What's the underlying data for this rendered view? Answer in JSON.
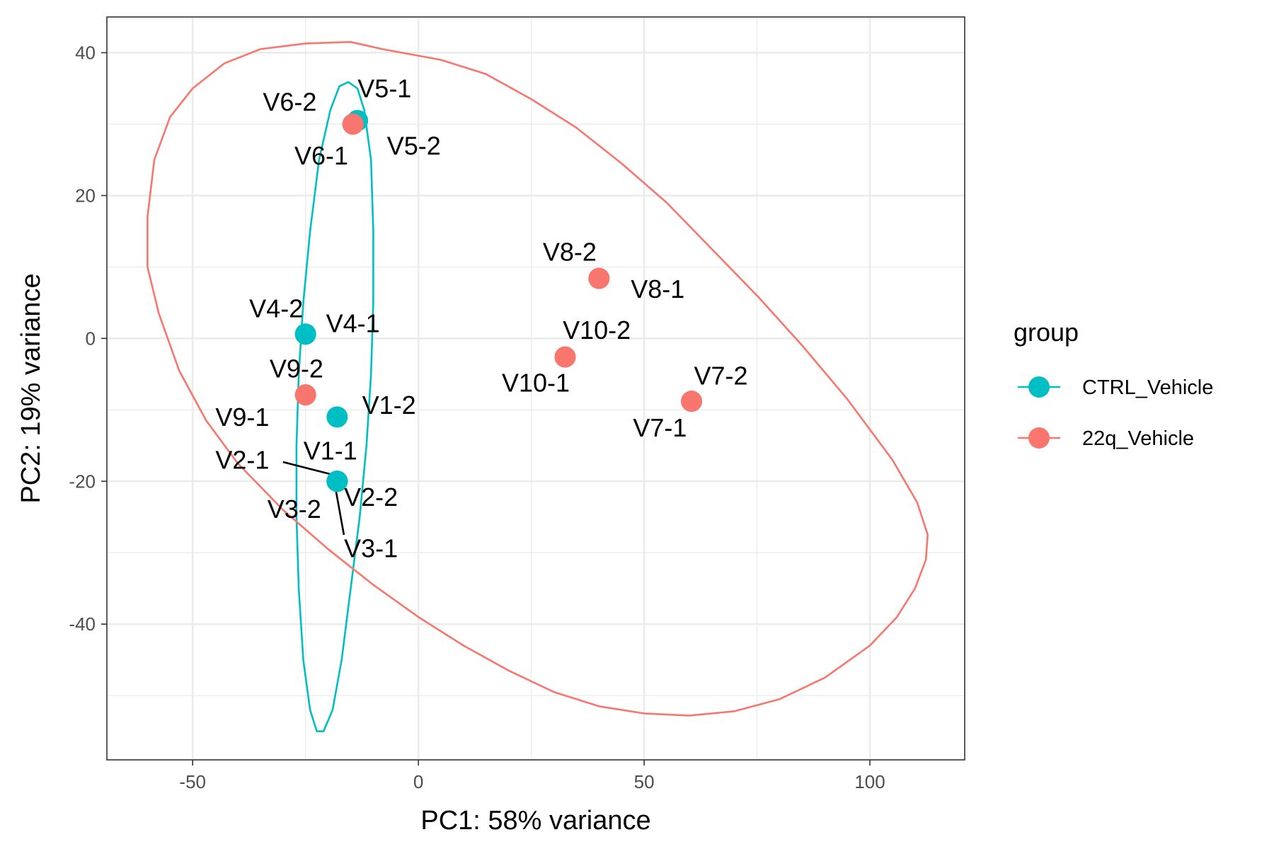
{
  "chart_data": {
    "type": "scatter",
    "xlabel": "PC1: 58% variance",
    "ylabel": "PC2: 19% variance",
    "xlim": [
      -69,
      121
    ],
    "ylim": [
      -59,
      45
    ],
    "x_ticks": [
      -50,
      0,
      50,
      100
    ],
    "y_ticks": [
      40,
      20,
      0,
      -20,
      -40
    ],
    "x_tick_labels": [
      "-50",
      "0",
      "50",
      "100"
    ],
    "y_tick_labels": [
      "40",
      "20",
      "0",
      "-20",
      "-40"
    ],
    "x_minor_ticks": [
      -25,
      25,
      75
    ],
    "y_minor_ticks": [
      30,
      10,
      -10,
      -30,
      -50
    ],
    "grid": true,
    "legend": {
      "title": "group",
      "placement": "right",
      "entries": [
        {
          "label": "CTRL_Vehicle",
          "color": "#00BFC4"
        },
        {
          "label": "22q_Vehicle",
          "color": "#F8766D"
        }
      ]
    },
    "series": [
      {
        "name": "CTRL_Vehicle",
        "color": "#00BFC4",
        "points": [
          {
            "label": "V1-1",
            "x": -18,
            "y": -20
          },
          {
            "label": "V1-2",
            "x": -18,
            "y": -11
          },
          {
            "label": "V2-1",
            "x": -18,
            "y": -20
          },
          {
            "label": "V2-2",
            "x": -18,
            "y": -20
          },
          {
            "label": "V3-1",
            "x": -18,
            "y": -20
          },
          {
            "label": "V3-2",
            "x": -18,
            "y": -20
          },
          {
            "label": "V4-1",
            "x": -25,
            "y": 0.6
          },
          {
            "label": "V4-2",
            "x": -25,
            "y": 0.6
          },
          {
            "label": "V5-1",
            "x": -13.5,
            "y": 30.5
          },
          {
            "label": "V5-2",
            "x": -13.5,
            "y": 30.5
          }
        ]
      },
      {
        "name": "22q_Vehicle",
        "color": "#F8766D",
        "points": [
          {
            "label": "V6-1",
            "x": -14.5,
            "y": 30
          },
          {
            "label": "V6-2",
            "x": -14.5,
            "y": 30
          },
          {
            "label": "V7-1",
            "x": 60.5,
            "y": -8.8
          },
          {
            "label": "V7-2",
            "x": 60.5,
            "y": -8.8
          },
          {
            "label": "V8-1",
            "x": 40,
            "y": 8.4
          },
          {
            "label": "V8-2",
            "x": 40,
            "y": 8.4
          },
          {
            "label": "V9-1",
            "x": -25,
            "y": -7.9
          },
          {
            "label": "V9-2",
            "x": -25,
            "y": -7.9
          },
          {
            "label": "V10-1",
            "x": 32.5,
            "y": -2.6
          },
          {
            "label": "V10-2",
            "x": 32.5,
            "y": -2.6
          }
        ]
      }
    ],
    "ellipses": [
      {
        "group": "CTRL_Vehicle",
        "color": "#00BFC4",
        "outline": [
          [
            -15.5,
            35.9
          ],
          [
            -13.5,
            35
          ],
          [
            -12,
            32
          ],
          [
            -10.5,
            25
          ],
          [
            -10,
            15
          ],
          [
            -10,
            5
          ],
          [
            -10.5,
            -5
          ],
          [
            -11.5,
            -15
          ],
          [
            -13,
            -25
          ],
          [
            -15,
            -35
          ],
          [
            -17,
            -45
          ],
          [
            -19,
            -52
          ],
          [
            -21,
            -55
          ],
          [
            -22.5,
            -55
          ],
          [
            -24,
            -52
          ],
          [
            -25.5,
            -45
          ],
          [
            -26.5,
            -35
          ],
          [
            -27,
            -25
          ],
          [
            -27,
            -15
          ],
          [
            -26.5,
            -5
          ],
          [
            -25.5,
            5
          ],
          [
            -24,
            15
          ],
          [
            -22,
            25
          ],
          [
            -19.5,
            32
          ],
          [
            -17.5,
            35.3
          ]
        ]
      },
      {
        "group": "22q_Vehicle",
        "color": "#F8766D",
        "outline": [
          [
            -8,
            40.5
          ],
          [
            5,
            39
          ],
          [
            15,
            37
          ],
          [
            25,
            33.5
          ],
          [
            35,
            29.5
          ],
          [
            45,
            24.5
          ],
          [
            55,
            19
          ],
          [
            65,
            12.5
          ],
          [
            75,
            6
          ],
          [
            85,
            -1
          ],
          [
            95,
            -8.5
          ],
          [
            105,
            -17
          ],
          [
            110.5,
            -23
          ],
          [
            112.8,
            -27.5
          ],
          [
            112.4,
            -31
          ],
          [
            110,
            -35
          ],
          [
            106,
            -39
          ],
          [
            100,
            -43
          ],
          [
            90,
            -47.5
          ],
          [
            80,
            -50.5
          ],
          [
            70,
            -52.2
          ],
          [
            60,
            -52.8
          ],
          [
            50,
            -52.5
          ],
          [
            40,
            -51.5
          ],
          [
            30,
            -49.5
          ],
          [
            20,
            -46.5
          ],
          [
            10,
            -43
          ],
          [
            0,
            -39
          ],
          [
            -10,
            -34.5
          ],
          [
            -20,
            -29.5
          ],
          [
            -30,
            -24
          ],
          [
            -40,
            -17.5
          ],
          [
            -47,
            -11.5
          ],
          [
            -53,
            -4.5
          ],
          [
            -57.5,
            3.5
          ],
          [
            -60,
            10
          ],
          [
            -60,
            17
          ],
          [
            -58.5,
            25
          ],
          [
            -55,
            31
          ],
          [
            -50,
            35
          ],
          [
            -43,
            38.5
          ],
          [
            -35,
            40.5
          ],
          [
            -25,
            41.3
          ],
          [
            -15,
            41.5
          ]
        ]
      }
    ],
    "annotations": [
      {
        "text": "V6-2",
        "x": -28.5,
        "y": 32.8,
        "anchor": "middle"
      },
      {
        "text": "V5-1",
        "x": -7.5,
        "y": 34.7,
        "anchor": "middle"
      },
      {
        "text": "V5-2",
        "x": -1,
        "y": 26.7,
        "anchor": "middle"
      },
      {
        "text": "V6-1",
        "x": -21.5,
        "y": 25.3,
        "anchor": "middle"
      },
      {
        "text": "V8-2",
        "x": 33.5,
        "y": 11.8,
        "anchor": "middle"
      },
      {
        "text": "V8-1",
        "x": 53,
        "y": 6.6,
        "anchor": "middle"
      },
      {
        "text": "V4-2",
        "x": -31.5,
        "y": 3.9,
        "anchor": "middle"
      },
      {
        "text": "V4-1",
        "x": -14.5,
        "y": 1.8,
        "anchor": "middle"
      },
      {
        "text": "V10-2",
        "x": 39.5,
        "y": 0.9,
        "anchor": "middle"
      },
      {
        "text": "V10-1",
        "x": 26,
        "y": -6.5,
        "anchor": "middle"
      },
      {
        "text": "V9-2",
        "x": -27,
        "y": -4.5,
        "anchor": "middle"
      },
      {
        "text": "V7-2",
        "x": 67,
        "y": -5.5,
        "anchor": "middle"
      },
      {
        "text": "V1-2",
        "x": -6.5,
        "y": -9.6,
        "anchor": "middle"
      },
      {
        "text": "V9-1",
        "x": -39,
        "y": -11.3,
        "anchor": "middle"
      },
      {
        "text": "V7-1",
        "x": 53.5,
        "y": -12.8,
        "anchor": "middle"
      },
      {
        "text": "V1-1",
        "x": -19.5,
        "y": -16,
        "anchor": "middle"
      },
      {
        "text": "V2-1",
        "x": -39,
        "y": -17.3,
        "anchor": "middle"
      },
      {
        "text": "V2-2",
        "x": -10.5,
        "y": -22.5,
        "anchor": "middle"
      },
      {
        "text": "V3-2",
        "x": -27.5,
        "y": -24.2,
        "anchor": "middle"
      },
      {
        "text": "V3-1",
        "x": -10.5,
        "y": -29.7,
        "anchor": "middle"
      }
    ],
    "connector_lines": [
      {
        "from": [
          -30,
          -17.3
        ],
        "to": [
          -19.5,
          -19
        ]
      },
      {
        "from": [
          -18.5,
          -20.5
        ],
        "to": [
          -16.5,
          -27.5
        ]
      }
    ]
  }
}
